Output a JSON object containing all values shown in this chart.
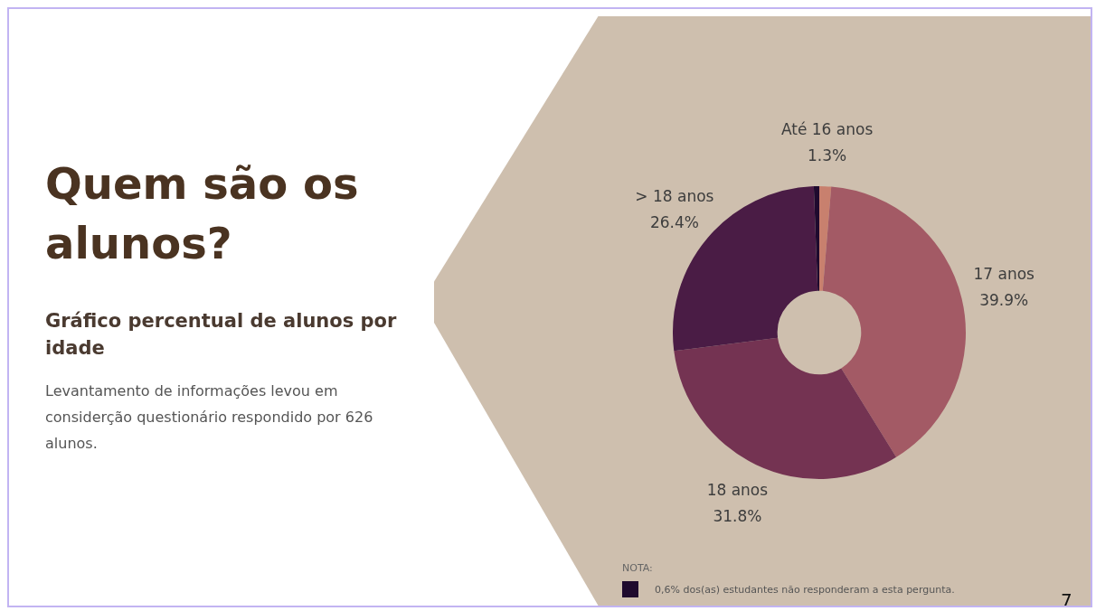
{
  "chart_data": {
    "type": "donut",
    "title": "Quem são os alunos?",
    "subtitle": "Gráfico percentual de alunos por idade",
    "categories": [
      "Até 16 anos",
      "17 anos",
      "18 anos",
      "> 18 anos",
      null
    ],
    "values": [
      1.3,
      39.9,
      31.8,
      26.4,
      0.6
    ],
    "value_labels": [
      "1.3%",
      "39.9%",
      "31.8%",
      "26.4%",
      null
    ],
    "colors": [
      "#c8806e",
      "#a35a65",
      "#743352",
      "#4a1c45",
      "#1f0a2e"
    ],
    "legend": false,
    "annotations": [
      "Levantamento de informações levou em  considerção questionário respondido por 626 alunos.",
      "NOTA:",
      "0,6% dos(as) estudantes não responderam a esta pergunta.",
      "7"
    ]
  }
}
